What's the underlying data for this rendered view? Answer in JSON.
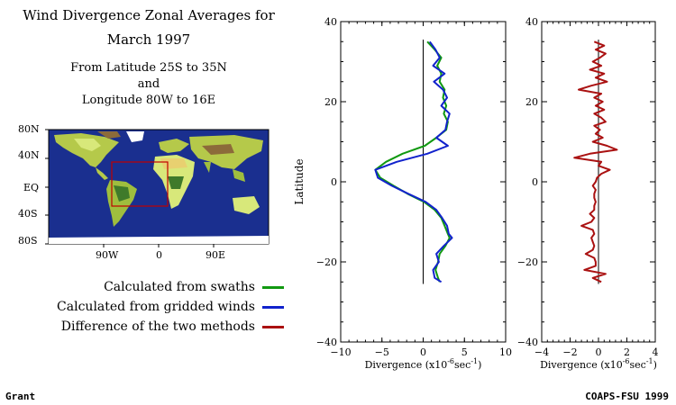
{
  "header": {
    "title_line1": "Wind Divergence Zonal Averages for",
    "title_line2": "March 1997",
    "sub_line1": "From Latitude 25S to 35N",
    "sub_line2": "and",
    "sub_line3": "Longitude 80W to 16E"
  },
  "map": {
    "lat_labels": [
      "80N",
      "40N",
      "EQ",
      "40S",
      "80S"
    ],
    "lon_labels": [
      "90W",
      "0",
      "90E"
    ],
    "box_color": "#c00000",
    "ocean_color": "#1a2f8f"
  },
  "legend": [
    {
      "label": "Calculated from swaths",
      "color": "#119911"
    },
    {
      "label": "Calculated from gridded winds",
      "color": "#1122cc"
    },
    {
      "label": "Difference of the two methods",
      "color": "#aa1111"
    }
  ],
  "footer": {
    "left": "Grant",
    "right": "COAPS-FSU 1999"
  },
  "chart_data": [
    {
      "type": "line",
      "ylabel": "Latitude",
      "xlabel_main": "Divergence (x10",
      "xlabel_exp1": "-6",
      "xlabel_mid": "sec",
      "xlabel_exp2": "-1",
      "xlabel_end": ")",
      "xlim": [
        -10,
        10
      ],
      "ylim": [
        -40,
        40
      ],
      "xticks": [
        "-10",
        "-5",
        "0",
        "5",
        "10"
      ],
      "yticks": [
        "-40",
        "-20",
        "0",
        "20",
        "40"
      ],
      "series": [
        {
          "color": "#119911",
          "lat": [
            35,
            33,
            31,
            29,
            27,
            25,
            23,
            21,
            19,
            17,
            15,
            13,
            11,
            9,
            7,
            5,
            3,
            1,
            -1,
            -3,
            -5,
            -7,
            -9,
            -11,
            -13,
            -14,
            -16,
            -18,
            -20,
            -22,
            -24,
            -25
          ],
          "values": [
            0.5,
            1.4,
            2.2,
            1.7,
            2.2,
            2.0,
            2.6,
            2.4,
            2.8,
            2.5,
            3.0,
            2.8,
            1.6,
            0.2,
            -2.5,
            -4.5,
            -5.8,
            -5.2,
            -3.6,
            -1.9,
            0.1,
            1.4,
            2.2,
            2.6,
            3.0,
            3.2,
            2.7,
            2.0,
            1.8,
            1.5,
            1.8,
            2.0
          ]
        },
        {
          "color": "#1122cc",
          "lat": [
            35,
            33,
            31,
            29,
            27,
            25,
            23,
            21,
            19,
            17,
            15,
            13,
            11,
            9,
            7,
            5,
            3,
            1,
            -1,
            -3,
            -5,
            -7,
            -9,
            -11,
            -13,
            -14,
            -16,
            -18,
            -20,
            -22,
            -24,
            -25
          ],
          "values": [
            0.8,
            1.5,
            2.0,
            1.2,
            2.6,
            1.3,
            2.4,
            2.9,
            2.2,
            3.2,
            2.9,
            2.7,
            1.6,
            3.0,
            0.5,
            -3.2,
            -5.8,
            -5.5,
            -3.8,
            -1.8,
            0.3,
            1.6,
            2.3,
            2.9,
            3.1,
            3.5,
            2.5,
            1.6,
            1.9,
            1.2,
            1.4,
            2.2
          ]
        }
      ]
    },
    {
      "type": "line",
      "xlabel_main": "Divergence (x10",
      "xlabel_exp1": "-6",
      "xlabel_mid": "sec",
      "xlabel_exp2": "-1",
      "xlabel_end": ")",
      "xlim": [
        -4,
        4
      ],
      "ylim": [
        -40,
        40
      ],
      "xticks": [
        "-4",
        "-2",
        "0",
        "2",
        "4"
      ],
      "yticks": [
        "-40",
        "-20",
        "0",
        "20",
        "40"
      ],
      "series": [
        {
          "color": "#aa1111",
          "lat": [
            35,
            34,
            33,
            32,
            31,
            30,
            29,
            28,
            27,
            26,
            25,
            24,
            23,
            22,
            21,
            20,
            19,
            18,
            17,
            16,
            15,
            14,
            13,
            12,
            11,
            10,
            9,
            8,
            7,
            6,
            5,
            4,
            3,
            2,
            1,
            0,
            -1,
            -2,
            -3,
            -4,
            -5,
            -6,
            -7,
            -8,
            -9,
            -10,
            -11,
            -12,
            -13,
            -14,
            -15,
            -16,
            -17,
            -18,
            -19,
            -20,
            -21,
            -22,
            -23,
            -24,
            -25
          ],
          "values": [
            -0.3,
            0.4,
            -0.2,
            0.5,
            0.1,
            -0.4,
            0.2,
            -0.6,
            0.4,
            -0.2,
            0.6,
            -0.5,
            -1.4,
            0.2,
            -0.3,
            0.3,
            -0.2,
            0.4,
            -0.3,
            0.2,
            0.5,
            -0.3,
            0.1,
            -0.2,
            0.3,
            -0.4,
            0.6,
            1.3,
            -0.6,
            -1.7,
            0.2,
            0.0,
            0.8,
            0.2,
            -0.1,
            -0.2,
            -0.4,
            -0.2,
            -0.3,
            -0.3,
            -0.2,
            -0.3,
            -0.3,
            -0.6,
            -0.3,
            -0.5,
            -1.2,
            -0.4,
            -0.3,
            -0.5,
            -0.4,
            -0.3,
            -0.4,
            -0.9,
            -0.3,
            -0.2,
            -0.2,
            -1.0,
            0.5,
            -0.4,
            0.2
          ]
        }
      ]
    }
  ]
}
